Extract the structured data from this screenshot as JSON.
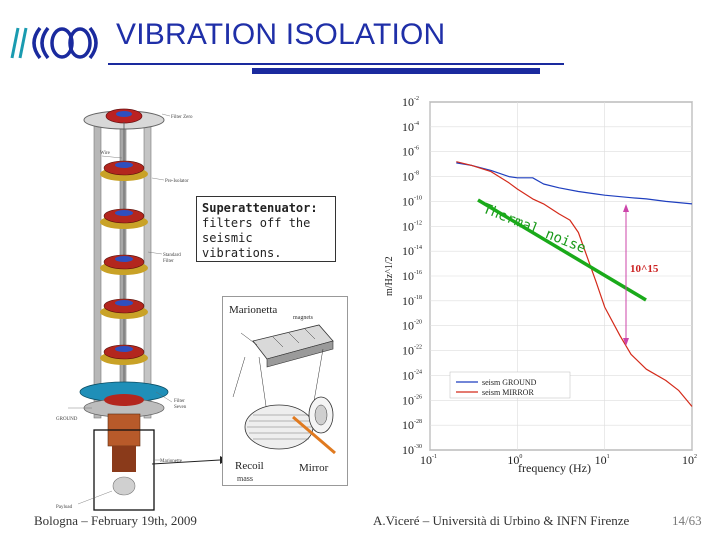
{
  "slide": {
    "title": "VIBRATION ISOLATION",
    "footer_left": "Bologna – February 19th, 2009",
    "footer_center": "A.Viceré – Università di Urbino & INFN Firenze",
    "page": "14/63",
    "accent_color": "#1a2a9e"
  },
  "callout": {
    "heading": "Superattenuator:",
    "line1": "filters off the",
    "line2": "seismic vibrations."
  },
  "tower_labels": {
    "filter_zero": "Filter Zero",
    "wire": "Wire",
    "pre_isolator": "Pre-Isolator",
    "standard_filter_1": "Standard",
    "standard_filter_2": "Filter",
    "ground": "GROUND",
    "filter_seven_1": "Filter",
    "filter_seven_2": "Seven",
    "marionette": "Marionette",
    "payload": "Payload"
  },
  "inset_labels": {
    "marionetta": "Marionetta",
    "magnets": "magnets",
    "recoil_1": "Recoil",
    "recoil_2": "mass",
    "mirror": "Mirror"
  },
  "chart_data": {
    "type": "line",
    "xlabel": "frequency (Hz)",
    "ylabel": "m/Hz^1/2",
    "x_ticks": [
      "10^-1",
      "10^0",
      "10^1",
      "10^2"
    ],
    "y_ticks": [
      "10^-2",
      "10^-4",
      "10^-6",
      "10^-8",
      "10^-10",
      "10^-12",
      "10^-14",
      "10^-16",
      "10^-18",
      "10^-20",
      "10^-22",
      "10^-24",
      "10^-26",
      "10^-28",
      "10^-30"
    ],
    "x_range": [
      0.1,
      100
    ],
    "y_range_log10": [
      -30,
      -2
    ],
    "log_x": true,
    "log_y": true,
    "legend_position": "bottom-right",
    "series": [
      {
        "name": "seism GROUND",
        "color": "#1f3fbf",
        "x": [
          0.2,
          0.3,
          0.5,
          0.8,
          1,
          1.5,
          2,
          3,
          5,
          8,
          10,
          20,
          30,
          50,
          100
        ],
        "y": [
          -6.9,
          -7.1,
          -7.5,
          -8.0,
          -8.1,
          -8.1,
          -8.6,
          -8.9,
          -9.2,
          -9.4,
          -9.5,
          -9.7,
          -9.8,
          -10.0,
          -10.2
        ]
      },
      {
        "name": "seism MIRROR",
        "color": "#d42a1a",
        "x": [
          0.2,
          0.3,
          0.5,
          0.8,
          1,
          1.5,
          2,
          3,
          4,
          5,
          8,
          10,
          15,
          20,
          30,
          50,
          70,
          100
        ],
        "y": [
          -6.8,
          -7.1,
          -7.6,
          -8.5,
          -9.0,
          -9.8,
          -10.2,
          -11.0,
          -11.5,
          -12.5,
          -16.5,
          -18.5,
          -20.8,
          -22.3,
          -23.5,
          -24.4,
          -25.2,
          -26.5
        ]
      }
    ],
    "annotations": [
      {
        "text": "Thermal noise",
        "color": "#1a9a1a"
      },
      {
        "text": "10^15",
        "color": "#cc2222"
      }
    ]
  }
}
